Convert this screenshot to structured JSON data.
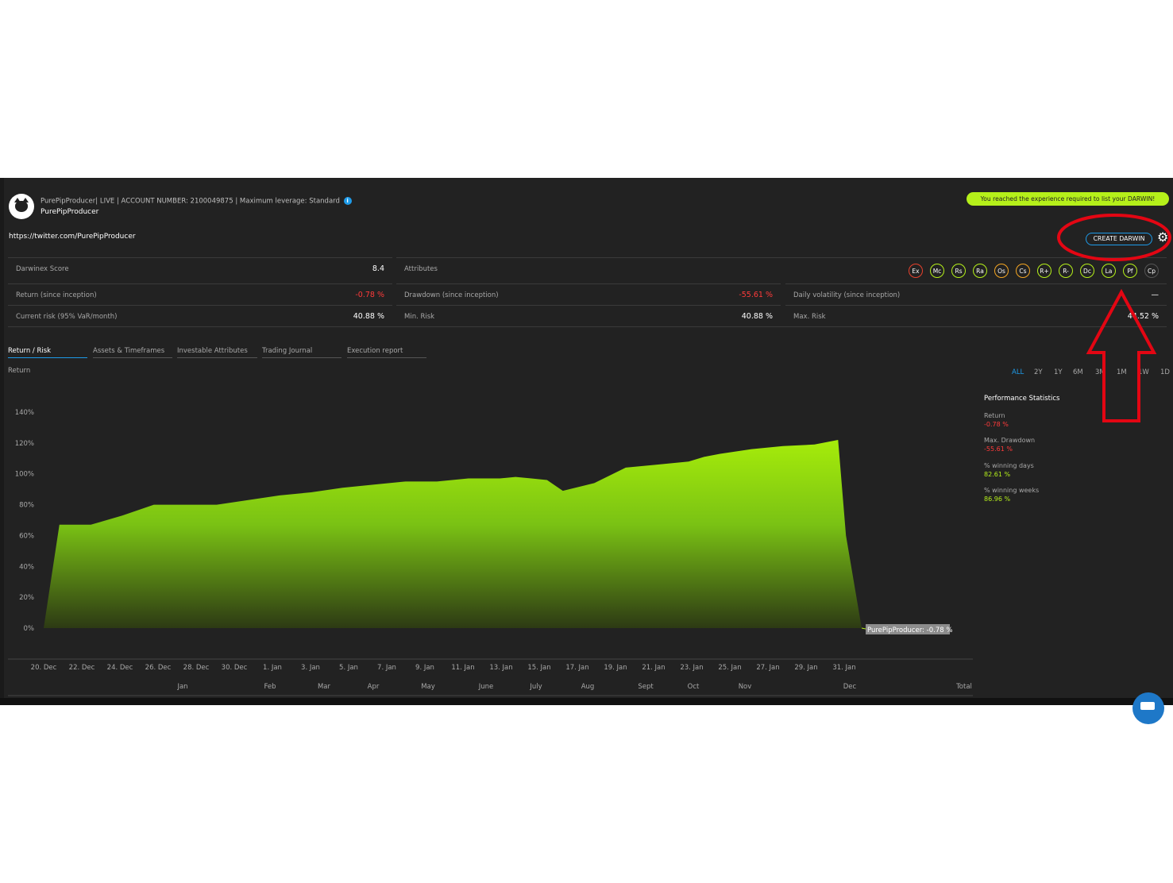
{
  "header": {
    "account_line": "PurePipProducer| LIVE | ACCOUNT NUMBER: 2100049875 | Maximum leverage: Standard",
    "account_name": "PurePipProducer",
    "twitter_url": "https://twitter.com/PurePipProducer",
    "experience_banner": "You reached the experience required to list your DARWIN!",
    "create_button": "CREATE DARWIN"
  },
  "stats": {
    "darwinex_score_label": "Darwinex Score",
    "darwinex_score_value": "8.4",
    "attributes_label": "Attributes",
    "return_label": "Return (since inception)",
    "return_value": "-0.78 %",
    "drawdown_label": "Drawdown (since inception)",
    "drawdown_value": "-55.61 %",
    "volatility_label": "Daily volatility (since inception)",
    "volatility_value": "—",
    "current_risk_label": "Current risk (95% VaR/month)",
    "current_risk_value": "40.88 %",
    "min_risk_label": "Min. Risk",
    "min_risk_value": "40.88 %",
    "max_risk_label": "Max. Risk",
    "max_risk_value": "44.52 %"
  },
  "attributes": [
    "Ex",
    "Mc",
    "Rs",
    "Ra",
    "Os",
    "Cs",
    "R+",
    "R-",
    "Dc",
    "La",
    "Pf",
    "Cp"
  ],
  "attribute_colors": [
    "#e8412c",
    "#b5f01a",
    "#b5f01a",
    "#b5f01a",
    "#f5a623",
    "#f5a623",
    "#b5f01a",
    "#b5f01a",
    "#b5f01a",
    "#b5f01a",
    "#b5f01a",
    "#555555"
  ],
  "tabs": [
    "Return / Risk",
    "Assets & Timeframes",
    "Investable Attributes",
    "Trading Journal",
    "Execution report"
  ],
  "return_label": "Return",
  "ranges": [
    "ALL",
    "2Y",
    "1Y",
    "6M",
    "3M",
    "1M",
    "1W",
    "1D"
  ],
  "performance": {
    "title": "Performance Statistics",
    "return_label": "Return",
    "return_value": "-0.78 %",
    "drawdown_label": "Max. Drawdown",
    "drawdown_value": "-55.61 %",
    "winning_days_label": "% winning days",
    "winning_days_value": "82.61 %",
    "winning_weeks_label": "% winning weeks",
    "winning_weeks_value": "86.96 %"
  },
  "chart_data": {
    "type": "area",
    "series_name": "PurePipProducer",
    "tooltip": "PurePipProducer: -0.78 %",
    "ylim": [
      0,
      140
    ],
    "y_ticks": [
      "0%",
      "20%",
      "40%",
      "60%",
      "80%",
      "100%",
      "120%",
      "140%"
    ],
    "x_tick_labels": [
      "20. Dec",
      "22. Dec",
      "24. Dec",
      "26. Dec",
      "28. Dec",
      "30. Dec",
      "1. Jan",
      "3. Jan",
      "5. Jan",
      "7. Jan",
      "9. Jan",
      "11. Jan",
      "13. Jan",
      "15. Jan",
      "17. Jan",
      "19. Jan",
      "21. Jan",
      "23. Jan",
      "25. Jan",
      "27. Jan",
      "29. Jan",
      "31. Jan"
    ],
    "month_labels": [
      "Jan",
      "Feb",
      "Mar",
      "Apr",
      "May",
      "June",
      "July",
      "Aug",
      "Sept",
      "Oct",
      "Nov",
      "Dec",
      "Total"
    ],
    "x_days": [
      0,
      1,
      3,
      5,
      7,
      9,
      11,
      13,
      15,
      17,
      19,
      21,
      23,
      25,
      27,
      29,
      30,
      31,
      32,
      33,
      35,
      37,
      39,
      41,
      42,
      43,
      45,
      47,
      49,
      50.5,
      51,
      52
    ],
    "values": [
      0,
      67,
      67,
      73,
      80,
      80,
      80,
      83,
      86,
      88,
      91,
      93,
      95,
      95,
      97,
      97,
      98,
      97,
      96,
      89,
      94,
      104,
      106,
      108,
      111,
      113,
      116,
      118,
      119,
      122,
      60,
      -0.78
    ]
  }
}
